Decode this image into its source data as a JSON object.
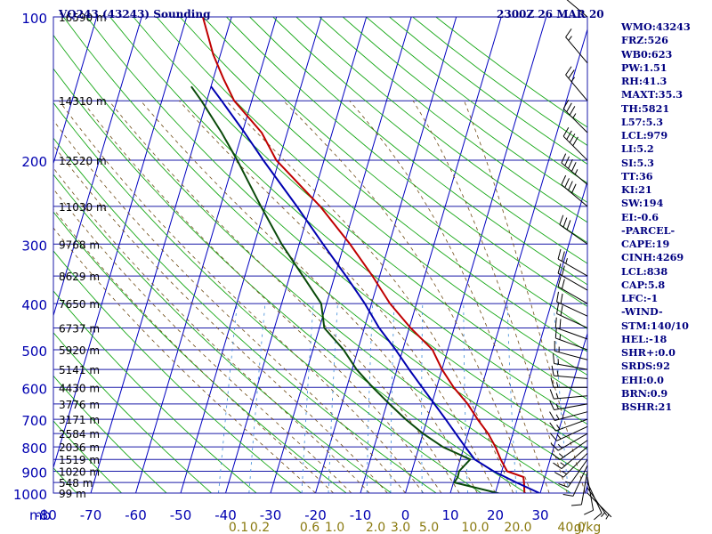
{
  "header": {
    "station": "VQ243 (43243) Sounding",
    "time": "2300Z 26 MAR 20"
  },
  "indices": [
    {
      "label": "WMO:43243"
    },
    {
      "label": "FRZ:526"
    },
    {
      "label": "WB0:623"
    },
    {
      "label": "PW:1.51"
    },
    {
      "label": "RH:41.3"
    },
    {
      "label": "MAXT:35.3"
    },
    {
      "label": "TH:5821"
    },
    {
      "label": "L57:5.3"
    },
    {
      "label": "LCL:979"
    },
    {
      "label": "LI:5.2"
    },
    {
      "label": "SI:5.3"
    },
    {
      "label": "TT:36"
    },
    {
      "label": "KI:21"
    },
    {
      "label": "SW:194"
    },
    {
      "label": "EI:-0.6"
    },
    {
      "label": "-PARCEL-"
    },
    {
      "label": "CAPE:19"
    },
    {
      "label": "CINH:4269"
    },
    {
      "label": "LCL:838"
    },
    {
      "label": "CAP:5.8"
    },
    {
      "label": "LFC:-1"
    },
    {
      "label": "-WIND-"
    },
    {
      "label": "STM:140/10"
    },
    {
      "label": "HEL:-18"
    },
    {
      "label": "SHR+:0.0"
    },
    {
      "label": "SRDS:92"
    },
    {
      "label": "EHI:0.0"
    },
    {
      "label": "BRN:0.9"
    },
    {
      "label": "BSHR:21"
    }
  ],
  "colors": {
    "isobar": "#1a1aa8",
    "isotherm": "#0000c0",
    "dry_adiabat": "#18a818",
    "moist_adiabat": "#6e4a14",
    "mixing_ratio": "#3a8ad8",
    "temperature": "#c00000",
    "dewpoint": "#0a4a0a",
    "parcel": "#0000b0",
    "axis_text": "#0000b0",
    "mixing_text": "#8a7a10",
    "wind_barb": "#000000"
  },
  "chart_data": {
    "type": "line",
    "title": "",
    "diagram": "skew-T log-P",
    "pressure_ticks": [
      100,
      200,
      300,
      400,
      500,
      600,
      700,
      800,
      900,
      1000
    ],
    "temperature_ticks": [
      -80,
      -70,
      -60,
      -50,
      -40,
      -30,
      -20,
      -10,
      0,
      10,
      20,
      30
    ],
    "x_axis_unit_label": "mb",
    "xlim": [
      -80,
      30
    ],
    "ylim": [
      1000,
      100
    ],
    "y_scale": "log",
    "grid": true,
    "height_labels": [
      {
        "p": 100,
        "label": "16590 m"
      },
      {
        "p": 150,
        "label": "14310 m"
      },
      {
        "p": 200,
        "label": "12520 m"
      },
      {
        "p": 250,
        "label": "11030 m"
      },
      {
        "p": 300,
        "label": "9768 m"
      },
      {
        "p": 350,
        "label": "8629 m"
      },
      {
        "p": 400,
        "label": "7650 m"
      },
      {
        "p": 450,
        "label": "6737 m"
      },
      {
        "p": 500,
        "label": "5920 m"
      },
      {
        "p": 550,
        "label": "5141 m"
      },
      {
        "p": 600,
        "label": "4430 m"
      },
      {
        "p": 650,
        "label": "3776 m"
      },
      {
        "p": 700,
        "label": "3171 m"
      },
      {
        "p": 750,
        "label": "2584 m"
      },
      {
        "p": 800,
        "label": "2036 m"
      },
      {
        "p": 850,
        "label": "1519 m"
      },
      {
        "p": 900,
        "label": "1020 m"
      },
      {
        "p": 950,
        "label": "548 m"
      },
      {
        "p": 1000,
        "label": "99 m"
      }
    ],
    "mixing_ratio_labels": [
      "0.1",
      "0.2",
      "0.6",
      "1.0",
      "2.0",
      "3.0",
      "5.0",
      "10.0",
      "20.0",
      "40.0",
      "g/kg"
    ],
    "mixing_ratio_values": [
      0.1,
      0.2,
      0.6,
      1.0,
      2.0,
      3.0,
      5.0,
      10.0,
      20.0,
      40.0
    ],
    "series": [
      {
        "name": "",
        "role": "temperature",
        "points": [
          {
            "p": 1007,
            "t": 26.0
          },
          {
            "p": 1000,
            "t": 26.5
          },
          {
            "p": 950,
            "t": 25.7
          },
          {
            "p": 925,
            "t": 25.2
          },
          {
            "p": 900,
            "t": 21.2
          },
          {
            "p": 850,
            "t": 19.0
          },
          {
            "p": 800,
            "t": 17.0
          },
          {
            "p": 750,
            "t": 14.5
          },
          {
            "p": 700,
            "t": 11.2
          },
          {
            "p": 650,
            "t": 8.0
          },
          {
            "p": 600,
            "t": 3.8
          },
          {
            "p": 550,
            "t": 0.0
          },
          {
            "p": 500,
            "t": -3.4
          },
          {
            "p": 450,
            "t": -9.7
          },
          {
            "p": 400,
            "t": -15.9
          },
          {
            "p": 350,
            "t": -21.6
          },
          {
            "p": 300,
            "t": -28.7
          },
          {
            "p": 250,
            "t": -37.8
          },
          {
            "p": 200,
            "t": -50.6
          },
          {
            "p": 175,
            "t": -55.7
          },
          {
            "p": 150,
            "t": -63.9
          },
          {
            "p": 135,
            "t": -67.7
          },
          {
            "p": 120,
            "t": -71.6
          },
          {
            "p": 100,
            "t": -76.4
          }
        ]
      },
      {
        "name": "",
        "role": "dewpoint",
        "points": [
          {
            "p": 1007,
            "t": 21.8
          },
          {
            "p": 1000,
            "t": 20.5
          },
          {
            "p": 950,
            "t": 10.2
          },
          {
            "p": 925,
            "t": 10.6
          },
          {
            "p": 900,
            "t": 10.5
          },
          {
            "p": 850,
            "t": 12.2
          },
          {
            "p": 800,
            "t": 5.3
          },
          {
            "p": 750,
            "t": 0.0
          },
          {
            "p": 700,
            "t": -4.8
          },
          {
            "p": 650,
            "t": -9.4
          },
          {
            "p": 600,
            "t": -14.2
          },
          {
            "p": 550,
            "t": -19.0
          },
          {
            "p": 500,
            "t": -23.2
          },
          {
            "p": 450,
            "t": -28.9
          },
          {
            "p": 400,
            "t": -31.2
          },
          {
            "p": 350,
            "t": -37.1
          },
          {
            "p": 300,
            "t": -43.9
          },
          {
            "p": 250,
            "t": -51.0
          },
          {
            "p": 200,
            "t": -59.3
          },
          {
            "p": 175,
            "t": -64.6
          },
          {
            "p": 150,
            "t": -71.2
          },
          {
            "p": 140,
            "t": -74.4
          }
        ]
      },
      {
        "name": "",
        "role": "parcel",
        "points": [
          {
            "p": 1000,
            "t": 29.8
          },
          {
            "p": 950,
            "t": 24.0
          },
          {
            "p": 900,
            "t": 18.2
          },
          {
            "p": 850,
            "t": 13.2
          },
          {
            "p": 800,
            "t": 10.3
          },
          {
            "p": 750,
            "t": 7.3
          },
          {
            "p": 700,
            "t": 4.1
          },
          {
            "p": 650,
            "t": 0.6
          },
          {
            "p": 600,
            "t": -3.2
          },
          {
            "p": 550,
            "t": -7.3
          },
          {
            "p": 500,
            "t": -11.6
          },
          {
            "p": 450,
            "t": -16.7
          },
          {
            "p": 400,
            "t": -21.5
          },
          {
            "p": 350,
            "t": -27.5
          },
          {
            "p": 300,
            "t": -34.7
          },
          {
            "p": 250,
            "t": -43.0
          },
          {
            "p": 200,
            "t": -53.5
          },
          {
            "p": 175,
            "t": -59.5
          },
          {
            "p": 150,
            "t": -66.7
          },
          {
            "p": 140,
            "t": -70.0
          }
        ]
      }
    ],
    "wind_barbs": [
      {
        "p": 1000,
        "dir": 135,
        "speed": 5
      },
      {
        "p": 975,
        "dir": 145,
        "speed": 5
      },
      {
        "p": 950,
        "dir": 155,
        "speed": 10
      },
      {
        "p": 925,
        "dir": 170,
        "speed": 10
      },
      {
        "p": 900,
        "dir": 190,
        "speed": 10
      },
      {
        "p": 875,
        "dir": 205,
        "speed": 10
      },
      {
        "p": 850,
        "dir": 215,
        "speed": 15
      },
      {
        "p": 825,
        "dir": 225,
        "speed": 15
      },
      {
        "p": 800,
        "dir": 230,
        "speed": 15
      },
      {
        "p": 775,
        "dir": 235,
        "speed": 15
      },
      {
        "p": 750,
        "dir": 240,
        "speed": 15
      },
      {
        "p": 725,
        "dir": 245,
        "speed": 15
      },
      {
        "p": 700,
        "dir": 250,
        "speed": 15
      },
      {
        "p": 675,
        "dir": 255,
        "speed": 15
      },
      {
        "p": 650,
        "dir": 260,
        "speed": 15
      },
      {
        "p": 625,
        "dir": 265,
        "speed": 15
      },
      {
        "p": 600,
        "dir": 270,
        "speed": 15
      },
      {
        "p": 575,
        "dir": 275,
        "speed": 15
      },
      {
        "p": 550,
        "dir": 280,
        "speed": 15
      },
      {
        "p": 525,
        "dir": 285,
        "speed": 15
      },
      {
        "p": 500,
        "dir": 290,
        "speed": 15
      },
      {
        "p": 475,
        "dir": 290,
        "speed": 20
      },
      {
        "p": 450,
        "dir": 295,
        "speed": 20
      },
      {
        "p": 425,
        "dir": 295,
        "speed": 20
      },
      {
        "p": 400,
        "dir": 300,
        "speed": 20
      },
      {
        "p": 375,
        "dir": 300,
        "speed": 20
      },
      {
        "p": 350,
        "dir": 300,
        "speed": 25
      },
      {
        "p": 300,
        "dir": 305,
        "speed": 30
      },
      {
        "p": 250,
        "dir": 310,
        "speed": 40
      },
      {
        "p": 225,
        "dir": 310,
        "speed": 45
      },
      {
        "p": 200,
        "dir": 315,
        "speed": 40
      },
      {
        "p": 175,
        "dir": 315,
        "speed": 35
      },
      {
        "p": 150,
        "dir": 320,
        "speed": 25
      },
      {
        "p": 125,
        "dir": 320,
        "speed": 15
      },
      {
        "p": 100,
        "dir": 310,
        "speed": 10
      }
    ]
  }
}
